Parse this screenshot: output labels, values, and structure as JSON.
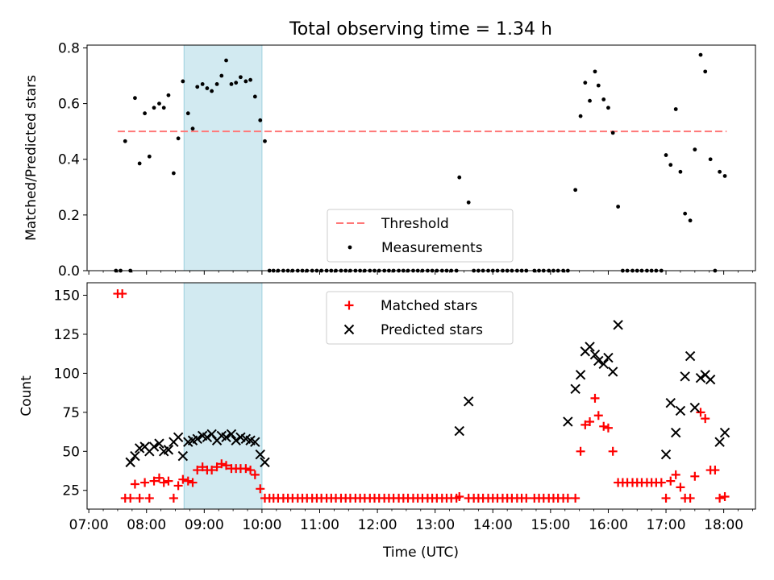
{
  "chart_data": {
    "type": "scatter",
    "title": "Total observing time = 1.34 h",
    "xlabel": "Time (UTC)",
    "x_unit": "hours UTC",
    "xlim": [
      6.97,
      18.55
    ],
    "x_ticks": [
      7,
      8,
      9,
      10,
      11,
      12,
      13,
      14,
      15,
      16,
      17,
      18
    ],
    "x_tick_labels": [
      "07:00",
      "08:00",
      "09:00",
      "10:00",
      "11:00",
      "12:00",
      "13:00",
      "14:00",
      "15:00",
      "16:00",
      "17:00",
      "18:00"
    ],
    "highlight_span": [
      8.65,
      10.0
    ],
    "highlight_color": "#add8e6",
    "panels": [
      {
        "ylabel": "Matched/Predicted stars",
        "ylim": [
          0,
          0.81
        ],
        "y_ticks": [
          0.0,
          0.2,
          0.4,
          0.6,
          0.8
        ],
        "y_tick_labels": [
          "0.0",
          "0.2",
          "0.4",
          "0.6",
          "0.8"
        ],
        "legend": {
          "placement": "lower-center",
          "entries": [
            "Threshold",
            "Measurements"
          ]
        },
        "threshold": {
          "name": "Threshold",
          "value": 0.5,
          "x_range": [
            7.5,
            18.05
          ],
          "color": "#ff7777",
          "style": "dashed"
        },
        "series": [
          {
            "name": "Measurements",
            "color": "#000000",
            "marker": "dot",
            "x": [
              7.47,
              7.55,
              7.63,
              7.72,
              7.8,
              7.88,
              7.97,
              8.05,
              8.13,
              8.22,
              8.3,
              8.38,
              8.47,
              8.55,
              8.63,
              8.72,
              8.8,
              8.88,
              8.97,
              9.05,
              9.13,
              9.22,
              9.3,
              9.38,
              9.47,
              9.55,
              9.63,
              9.72,
              9.8,
              9.88,
              9.97,
              10.05,
              10.13,
              10.2,
              10.28,
              10.37,
              10.45,
              10.53,
              10.62,
              10.7,
              10.78,
              10.87,
              10.95,
              11.03,
              11.12,
              11.2,
              11.28,
              11.37,
              11.45,
              11.53,
              11.62,
              11.7,
              11.78,
              11.87,
              11.95,
              12.03,
              12.12,
              12.2,
              12.28,
              12.37,
              12.45,
              12.53,
              12.62,
              12.7,
              12.78,
              12.87,
              12.95,
              13.03,
              13.12,
              13.2,
              13.28,
              13.37,
              13.42,
              13.58,
              13.67,
              13.75,
              13.83,
              13.92,
              14.0,
              14.08,
              14.17,
              14.25,
              14.33,
              14.42,
              14.5,
              14.58,
              14.72,
              14.8,
              14.88,
              14.97,
              15.05,
              15.13,
              15.22,
              15.3,
              15.43,
              15.52,
              15.6,
              15.68,
              15.77,
              15.83,
              15.92,
              16.0,
              16.08,
              16.17,
              16.25,
              16.33,
              16.42,
              16.5,
              16.58,
              16.67,
              16.75,
              16.83,
              16.92,
              17.0,
              17.08,
              17.17,
              17.25,
              17.33,
              17.42,
              17.5,
              17.6,
              17.68,
              17.77,
              17.85,
              17.93,
              18.02
            ],
            "y": [
              0.0,
              0.0,
              0.465,
              0.0,
              0.62,
              0.385,
              0.565,
              0.41,
              0.585,
              0.6,
              0.585,
              0.63,
              0.35,
              0.475,
              0.68,
              0.565,
              0.51,
              0.66,
              0.67,
              0.655,
              0.645,
              0.67,
              0.7,
              0.755,
              0.67,
              0.675,
              0.695,
              0.68,
              0.685,
              0.625,
              0.54,
              0.465,
              0.0,
              0.0,
              0.0,
              0.0,
              0.0,
              0.0,
              0.0,
              0.0,
              0.0,
              0.0,
              0.0,
              0.0,
              0.0,
              0.0,
              0.0,
              0.0,
              0.0,
              0.0,
              0.0,
              0.0,
              0.0,
              0.0,
              0.0,
              0.0,
              0.0,
              0.0,
              0.0,
              0.0,
              0.0,
              0.0,
              0.0,
              0.0,
              0.0,
              0.0,
              0.0,
              0.0,
              0.0,
              0.0,
              0.0,
              0.0,
              0.335,
              0.245,
              0.0,
              0.0,
              0.0,
              0.0,
              0.0,
              0.0,
              0.0,
              0.0,
              0.0,
              0.0,
              0.0,
              0.0,
              0.0,
              0.0,
              0.0,
              0.0,
              0.0,
              0.0,
              0.0,
              0.0,
              0.29,
              0.555,
              0.675,
              0.61,
              0.715,
              0.665,
              0.615,
              0.585,
              0.495,
              0.23,
              0.0,
              0.0,
              0.0,
              0.0,
              0.0,
              0.0,
              0.0,
              0.0,
              0.0,
              0.415,
              0.38,
              0.58,
              0.355,
              0.205,
              0.18,
              0.435,
              0.775,
              0.715,
              0.4,
              0.0,
              0.355,
              0.34
            ]
          }
        ]
      },
      {
        "ylabel": "Count",
        "ylim": [
          13,
          158
        ],
        "y_ticks": [
          25,
          50,
          75,
          100,
          125,
          150
        ],
        "y_tick_labels": [
          "25",
          "50",
          "75",
          "100",
          "125",
          "150"
        ],
        "legend": {
          "placement": "upper-center",
          "entries": [
            "Matched stars",
            "Predicted stars"
          ]
        },
        "series": [
          {
            "name": "Matched stars",
            "color": "#ff0000",
            "marker": "plus",
            "x": [
              7.5,
              7.58,
              7.63,
              7.72,
              7.8,
              7.88,
              7.97,
              8.05,
              8.13,
              8.22,
              8.3,
              8.38,
              8.47,
              8.55,
              8.63,
              8.72,
              8.8,
              8.88,
              8.97,
              9.05,
              9.13,
              9.22,
              9.3,
              9.38,
              9.47,
              9.55,
              9.63,
              9.72,
              9.8,
              9.88,
              9.97,
              10.05,
              10.13,
              10.2,
              10.28,
              10.37,
              10.45,
              10.53,
              10.62,
              10.7,
              10.78,
              10.87,
              10.95,
              11.03,
              11.12,
              11.2,
              11.28,
              11.37,
              11.45,
              11.53,
              11.62,
              11.7,
              11.78,
              11.87,
              11.95,
              12.03,
              12.12,
              12.2,
              12.28,
              12.37,
              12.45,
              12.53,
              12.62,
              12.7,
              12.78,
              12.87,
              12.95,
              13.03,
              13.12,
              13.2,
              13.28,
              13.37,
              13.42,
              13.58,
              13.67,
              13.75,
              13.83,
              13.92,
              14.0,
              14.08,
              14.17,
              14.25,
              14.33,
              14.42,
              14.5,
              14.58,
              14.72,
              14.8,
              14.88,
              14.97,
              15.05,
              15.13,
              15.22,
              15.3,
              15.43,
              15.52,
              15.6,
              15.68,
              15.77,
              15.83,
              15.92,
              16.0,
              16.08,
              16.17,
              16.25,
              16.33,
              16.42,
              16.5,
              16.58,
              16.67,
              16.75,
              16.83,
              16.92,
              17.0,
              17.08,
              17.17,
              17.25,
              17.33,
              17.42,
              17.5,
              17.6,
              17.68,
              17.77,
              17.85,
              17.93,
              18.02
            ],
            "y": [
              151,
              151,
              20,
              20,
              29,
              20,
              30,
              20,
              31,
              33,
              30,
              31,
              20,
              28,
              32,
              31,
              30,
              38,
              40,
              38,
              38,
              40,
              42,
              41,
              39,
              39,
              39,
              39,
              38,
              35,
              26,
              20,
              20,
              20,
              20,
              20,
              20,
              20,
              20,
              20,
              20,
              20,
              20,
              20,
              20,
              20,
              20,
              20,
              20,
              20,
              20,
              20,
              20,
              20,
              20,
              20,
              20,
              20,
              20,
              20,
              20,
              20,
              20,
              20,
              20,
              20,
              20,
              20,
              20,
              20,
              20,
              20,
              21,
              20,
              20,
              20,
              20,
              20,
              20,
              20,
              20,
              20,
              20,
              20,
              20,
              20,
              20,
              20,
              20,
              20,
              20,
              20,
              20,
              20,
              20,
              50,
              67,
              69,
              84,
              73,
              66,
              65,
              50,
              30,
              30,
              30,
              30,
              30,
              30,
              30,
              30,
              30,
              30,
              20,
              31,
              35,
              27,
              20,
              20,
              34,
              75,
              71,
              38,
              38,
              20,
              21
            ]
          },
          {
            "name": "Predicted stars",
            "color": "#000000",
            "marker": "x",
            "x": [
              7.72,
              7.8,
              7.88,
              7.97,
              8.05,
              8.13,
              8.22,
              8.3,
              8.38,
              8.47,
              8.55,
              8.63,
              8.72,
              8.8,
              8.88,
              8.97,
              9.05,
              9.13,
              9.22,
              9.3,
              9.38,
              9.47,
              9.55,
              9.63,
              9.72,
              9.8,
              9.88,
              9.97,
              10.05,
              13.42,
              13.58,
              15.3,
              15.43,
              15.52,
              15.6,
              15.68,
              15.77,
              15.83,
              15.92,
              16.0,
              16.08,
              16.17,
              17.0,
              17.08,
              17.17,
              17.25,
              17.33,
              17.42,
              17.5,
              17.6,
              17.68,
              17.77,
              17.93,
              18.02
            ],
            "y": [
              43,
              47,
              52,
              53,
              50,
              53,
              55,
              50,
              51,
              56,
              59,
              47,
              56,
              57,
              58,
              60,
              59,
              61,
              57,
              60,
              59,
              61,
              57,
              59,
              58,
              57,
              56,
              48,
              43,
              63,
              82,
              69,
              90,
              99,
              114,
              117,
              112,
              108,
              106,
              110,
              101,
              131,
              48,
              81,
              62,
              76,
              98,
              111,
              78,
              97,
              99,
              96,
              56,
              62
            ]
          }
        ]
      }
    ]
  }
}
